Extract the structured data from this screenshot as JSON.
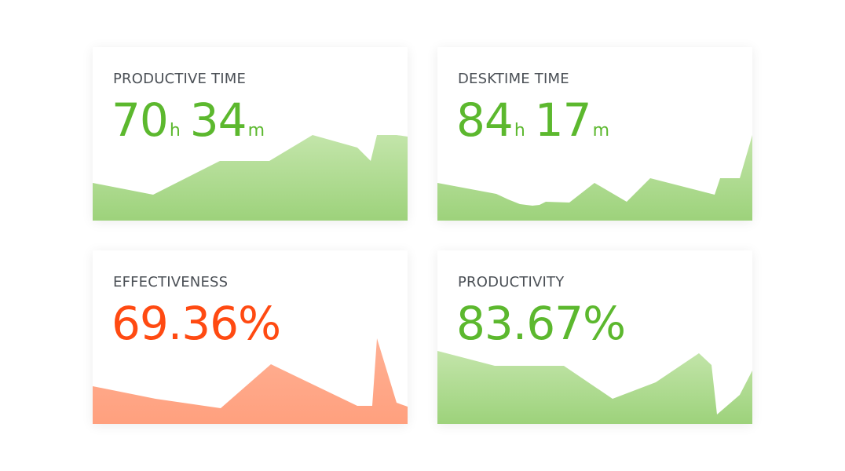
{
  "cards": [
    {
      "label": "PRODUCTIVE TIME",
      "hours": "70",
      "hours_unit": "h",
      "minutes": "34",
      "minutes_unit": "m",
      "color": "#5cb82e",
      "fill_top": "#c3e5aa",
      "fill_bottom": "#9dd27b"
    },
    {
      "label": "DESKTIME TIME",
      "hours": "84",
      "hours_unit": "h",
      "minutes": "17",
      "minutes_unit": "m",
      "color": "#5cb82e",
      "fill_top": "#c3e5aa",
      "fill_bottom": "#9dd27b"
    },
    {
      "label": "EFFECTIVENESS",
      "value": "69.36%",
      "color": "#ff4a12",
      "fill_top": "#ffb094",
      "fill_bottom": "#ffa07e"
    },
    {
      "label": "PRODUCTIVITY",
      "value": "83.67%",
      "color": "#5cb82e",
      "fill_top": "#c3e5aa",
      "fill_bottom": "#9dd27b"
    }
  ]
}
